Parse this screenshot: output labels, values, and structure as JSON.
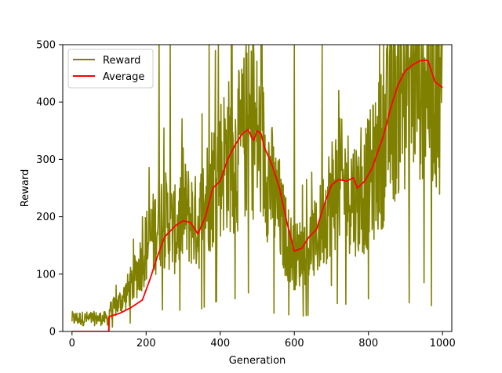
{
  "chart_data": {
    "type": "line",
    "xlabel": "Generation",
    "ylabel": "Reward",
    "xlim": [
      -25,
      1025
    ],
    "ylim": [
      0,
      500
    ],
    "xticks": [
      0,
      200,
      400,
      600,
      800,
      1000
    ],
    "yticks": [
      0,
      100,
      200,
      300,
      400,
      500
    ],
    "grid": false,
    "legend_position": "top-left",
    "series": [
      {
        "name": "Reward",
        "color": "#808000",
        "style": "noisy",
        "x": [
          0,
          20,
          40,
          60,
          80,
          100,
          120,
          140,
          160,
          180,
          200,
          220,
          240,
          260,
          280,
          300,
          320,
          340,
          360,
          380,
          400,
          420,
          440,
          460,
          480,
          500,
          520,
          540,
          560,
          580,
          600,
          620,
          640,
          660,
          680,
          700,
          720,
          740,
          760,
          780,
          800,
          820,
          840,
          860,
          880,
          900,
          920,
          940,
          960,
          980,
          1000
        ],
        "y": [
          18,
          25,
          22,
          30,
          28,
          35,
          45,
          60,
          80,
          110,
          150,
          170,
          200,
          190,
          175,
          210,
          200,
          185,
          230,
          260,
          290,
          310,
          300,
          330,
          360,
          340,
          300,
          250,
          200,
          160,
          130,
          140,
          150,
          160,
          200,
          240,
          260,
          250,
          240,
          230,
          260,
          290,
          330,
          380,
          420,
          440,
          450,
          470,
          460,
          440,
          430
        ],
        "spikes": [
          {
            "x": 100,
            "y": 0
          },
          {
            "x": 190,
            "y": 200
          },
          {
            "x": 235,
            "y": 500
          },
          {
            "x": 265,
            "y": 500
          },
          {
            "x": 300,
            "y": 320
          },
          {
            "x": 370,
            "y": 500
          },
          {
            "x": 395,
            "y": 500
          },
          {
            "x": 430,
            "y": 500
          },
          {
            "x": 440,
            "y": 57
          },
          {
            "x": 470,
            "y": 500
          },
          {
            "x": 490,
            "y": 500
          },
          {
            "x": 510,
            "y": 500
          },
          {
            "x": 545,
            "y": 32
          },
          {
            "x": 560,
            "y": 300
          },
          {
            "x": 600,
            "y": 500
          },
          {
            "x": 675,
            "y": 500
          },
          {
            "x": 700,
            "y": 80
          },
          {
            "x": 720,
            "y": 420
          },
          {
            "x": 780,
            "y": 355
          },
          {
            "x": 800,
            "y": 57
          },
          {
            "x": 830,
            "y": 500
          },
          {
            "x": 870,
            "y": 500
          },
          {
            "x": 895,
            "y": 500
          },
          {
            "x": 910,
            "y": 50
          },
          {
            "x": 935,
            "y": 500
          },
          {
            "x": 950,
            "y": 85
          },
          {
            "x": 970,
            "y": 45
          },
          {
            "x": 985,
            "y": 500
          },
          {
            "x": 995,
            "y": 445
          }
        ]
      },
      {
        "name": "Average",
        "color": "#ff0000",
        "style": "smooth",
        "x": [
          0,
          50,
          99,
          100,
          130,
          160,
          190,
          210,
          230,
          250,
          280,
          300,
          320,
          340,
          360,
          380,
          400,
          420,
          440,
          460,
          475,
          490,
          500,
          510,
          520,
          540,
          560,
          580,
          600,
          620,
          640,
          660,
          680,
          700,
          720,
          740,
          760,
          770,
          790,
          810,
          840,
          860,
          880,
          900,
          920,
          940,
          960,
          980,
          1000
        ],
        "y": [
          0,
          0,
          0,
          26,
          32,
          42,
          55,
          90,
          130,
          165,
          185,
          193,
          190,
          170,
          200,
          250,
          262,
          300,
          325,
          345,
          352,
          333,
          350,
          345,
          320,
          290,
          250,
          190,
          140,
          145,
          165,
          178,
          220,
          255,
          265,
          262,
          268,
          250,
          262,
          285,
          340,
          390,
          430,
          455,
          465,
          472,
          473,
          435,
          425
        ]
      }
    ]
  }
}
